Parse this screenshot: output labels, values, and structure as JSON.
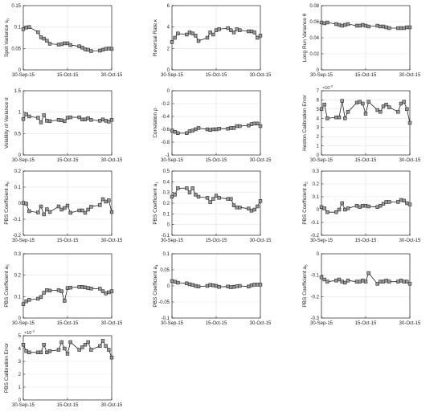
{
  "figure": {
    "date_ticks": [
      "30-Sep-15",
      "15-Oct-15",
      "30-Oct-15"
    ],
    "x_start": "2015-09-30",
    "x_end": "2015-10-30",
    "dates": [
      "2015-09-30",
      "2015-10-01",
      "2015-10-02",
      "2015-10-05",
      "2015-10-06",
      "2015-10-07",
      "2015-10-08",
      "2015-10-09",
      "2015-10-12",
      "2015-10-13",
      "2015-10-14",
      "2015-10-15",
      "2015-10-16",
      "2015-10-19",
      "2015-10-20",
      "2015-10-21",
      "2015-10-22",
      "2015-10-23",
      "2015-10-26",
      "2015-10-27",
      "2015-10-28",
      "2015-10-29",
      "2015-10-30"
    ],
    "colors": {
      "line": "#222222",
      "marker_fill": "#9a9a9a",
      "grid": "#e3e3e3",
      "axis": "#000000",
      "text": "#222222"
    }
  },
  "chart_data": [
    {
      "id": "spot",
      "type": "line",
      "ylabel": "Spot Variance v0",
      "ylabel_main": "Spot Variance v",
      "ylabel_sub": "0",
      "ylim": [
        0,
        0.15
      ],
      "yticks": [
        "0",
        "0.05",
        "0.1",
        "0.15"
      ],
      "exponent": "",
      "values": [
        0.095,
        0.099,
        0.1,
        0.088,
        0.076,
        0.073,
        0.068,
        0.061,
        0.059,
        0.06,
        0.062,
        0.062,
        0.058,
        0.055,
        0.052,
        0.048,
        0.047,
        0.044,
        0.045,
        0.047,
        0.049,
        0.05,
        0.049
      ]
    },
    {
      "id": "kappa",
      "type": "line",
      "ylabel": "Reversal Rate κ",
      "ylabel_main": "Reversal Rate κ",
      "ylabel_sub": "",
      "ylim": [
        0,
        6
      ],
      "yticks": [
        "0",
        "2",
        "4",
        "6"
      ],
      "exponent": "",
      "values": [
        2.6,
        3.0,
        3.4,
        3.3,
        3.5,
        3.4,
        3.2,
        2.7,
        3.0,
        3.5,
        3.3,
        3.7,
        3.8,
        3.9,
        3.7,
        3.5,
        3.8,
        3.7,
        3.6,
        3.6,
        3.5,
        3.0,
        3.2
      ]
    },
    {
      "id": "theta",
      "type": "line",
      "ylabel": "Long Run Variance θ",
      "ylabel_main": "Long Run Variance θ",
      "ylabel_sub": "",
      "ylim": [
        0,
        0.08
      ],
      "yticks": [
        "0",
        "0.02",
        "0.04",
        "0.06",
        "0.08"
      ],
      "exponent": "",
      "values": [
        0.059,
        0.058,
        0.059,
        0.057,
        0.056,
        0.055,
        0.056,
        0.057,
        0.055,
        0.055,
        0.056,
        0.055,
        0.054,
        0.055,
        0.054,
        0.054,
        0.053,
        0.052,
        0.052,
        0.052,
        0.052,
        0.053,
        0.053
      ]
    },
    {
      "id": "sigma",
      "type": "line",
      "ylabel": "Volatility of Variance σ",
      "ylabel_main": "Volatility of Variance σ",
      "ylabel_sub": "",
      "ylim": [
        0,
        1.5
      ],
      "yticks": [
        "0",
        "0.5",
        "1",
        "1.5"
      ],
      "exponent": "",
      "values": [
        0.84,
        0.95,
        0.9,
        0.87,
        0.76,
        0.93,
        0.8,
        0.79,
        0.82,
        0.81,
        0.79,
        0.87,
        0.88,
        0.88,
        0.83,
        0.83,
        0.86,
        0.82,
        0.8,
        0.83,
        0.8,
        0.78,
        0.82
      ]
    },
    {
      "id": "rho",
      "type": "line",
      "ylabel": "Correlation ρ",
      "ylabel_main": "Correlation ρ",
      "ylabel_sub": "",
      "ylim": [
        -1,
        0
      ],
      "yticks": [
        "-1",
        "-0.8",
        "-0.6",
        "-0.4",
        "-0.2",
        "0"
      ],
      "exponent": "",
      "values": [
        -0.62,
        -0.64,
        -0.66,
        -0.66,
        -0.63,
        -0.62,
        -0.6,
        -0.58,
        -0.6,
        -0.61,
        -0.6,
        -0.6,
        -0.59,
        -0.59,
        -0.58,
        -0.58,
        -0.55,
        -0.55,
        -0.54,
        -0.52,
        -0.51,
        -0.51,
        -0.55
      ]
    },
    {
      "id": "heston_err",
      "type": "line",
      "ylabel": "Heston Calibration Error",
      "ylabel_main": "Heston Calibration Error",
      "ylabel_sub": "",
      "ylim": [
        0,
        7
      ],
      "yticks": [
        "0",
        "1",
        "2",
        "3",
        "4",
        "5",
        "6",
        "7"
      ],
      "exponent": "×10⁻³",
      "exp_base": "×10",
      "exp_power": "-3",
      "values": [
        5.0,
        5.5,
        4.0,
        4.1,
        4.1,
        5.9,
        4.0,
        4.7,
        5.7,
        5.8,
        5.6,
        4.5,
        5.8,
        4.9,
        4.7,
        5.3,
        5.5,
        5.2,
        4.7,
        5.6,
        5.8,
        5.0,
        3.5
      ]
    },
    {
      "id": "a0",
      "type": "line",
      "ylabel": "PBS Coefficient a0",
      "ylabel_main": "PBS Coefficient a",
      "ylabel_sub": "0",
      "ylim": [
        -0.2,
        0.2
      ],
      "yticks": [
        "-0.2",
        "-0.1",
        "0",
        "0.1",
        "0.2"
      ],
      "exponent": "",
      "values": [
        0.002,
        -0.003,
        -0.05,
        -0.058,
        -0.02,
        -0.07,
        -0.038,
        -0.055,
        -0.02,
        -0.04,
        -0.03,
        -0.015,
        -0.06,
        -0.045,
        -0.045,
        -0.06,
        -0.04,
        -0.022,
        -0.012,
        0.025,
        0.01,
        0.018,
        -0.055
      ]
    },
    {
      "id": "a1",
      "type": "line",
      "ylabel": "PBS Coefficient a1",
      "ylabel_main": "PBS Coefficient a",
      "ylabel_sub": "1",
      "ylim": [
        -0.1,
        0.5
      ],
      "yticks": [
        "-0.1",
        "0",
        "0.1",
        "0.2",
        "0.3",
        "0.4",
        "0.5"
      ],
      "exponent": "",
      "values": [
        0.26,
        0.28,
        0.34,
        0.34,
        0.3,
        0.34,
        0.28,
        0.26,
        0.25,
        0.21,
        0.24,
        0.27,
        0.25,
        0.24,
        0.24,
        0.18,
        0.16,
        0.16,
        0.15,
        0.13,
        0.14,
        0.17,
        0.22
      ]
    },
    {
      "id": "a2",
      "type": "line",
      "ylabel": "PBS Coefficient a2",
      "ylabel_main": "PBS Coefficient a",
      "ylabel_sub": "2",
      "ylim": [
        -0.2,
        0.3
      ],
      "yticks": [
        "-0.2",
        "-0.1",
        "0",
        "0.1",
        "0.2",
        "0.3"
      ],
      "exponent": "",
      "values": [
        0.02,
        0.01,
        -0.02,
        -0.02,
        0.0,
        0.05,
        0.0,
        0.01,
        0.03,
        0.02,
        0.03,
        0.03,
        0.025,
        0.02,
        0.03,
        0.045,
        0.06,
        0.06,
        0.06,
        0.075,
        0.07,
        0.05,
        0.04
      ]
    },
    {
      "id": "a3",
      "type": "line",
      "ylabel": "PBS Coefficient a3",
      "ylabel_main": "PBS Coefficient a",
      "ylabel_sub": "3",
      "ylim": [
        0,
        0.3
      ],
      "yticks": [
        "0",
        "0.1",
        "0.2",
        "0.3"
      ],
      "exponent": "",
      "values": [
        0.065,
        0.078,
        0.085,
        0.09,
        0.098,
        0.118,
        0.13,
        0.128,
        0.13,
        0.125,
        0.08,
        0.14,
        0.142,
        0.145,
        0.145,
        0.143,
        0.14,
        0.138,
        0.137,
        0.125,
        0.115,
        0.12,
        0.125
      ]
    },
    {
      "id": "a4",
      "type": "line",
      "ylabel": "PBS Coefficient a4",
      "ylabel_main": "PBS Coefficient a",
      "ylabel_sub": "4",
      "ylim": [
        -0.1,
        0.1
      ],
      "yticks": [
        "-0.1",
        "-0.05",
        "0",
        "0.05",
        "0.1"
      ],
      "exponent": "",
      "values": [
        0.015,
        0.013,
        0.01,
        0.008,
        0.005,
        0.003,
        0.0,
        -0.002,
        0.0,
        0.003,
        0.002,
        0.0,
        -0.003,
        -0.002,
        -0.004,
        -0.003,
        -0.001,
        0.0,
        -0.002,
        0.002,
        0.004,
        0.004,
        0.004
      ]
    },
    {
      "id": "a5",
      "type": "line",
      "ylabel": "PBS Coefficient a5",
      "ylabel_main": "PBS Coefficient a",
      "ylabel_sub": "5",
      "ylim": [
        -0.3,
        0
      ],
      "yticks": [
        "-0.3",
        "-0.2",
        "-0.1",
        "0"
      ],
      "exponent": "",
      "values": [
        -0.11,
        -0.12,
        -0.13,
        -0.125,
        -0.12,
        -0.13,
        -0.135,
        -0.125,
        -0.13,
        -0.13,
        -0.125,
        -0.13,
        -0.09,
        -0.14,
        -0.13,
        -0.13,
        -0.125,
        -0.13,
        -0.13,
        -0.125,
        -0.13,
        -0.13,
        -0.14
      ]
    },
    {
      "id": "pbs_err",
      "type": "line",
      "ylabel": "PBS Calibration Error",
      "ylabel_main": "PBS Calibration Error",
      "ylabel_sub": "",
      "ylim": [
        0,
        5
      ],
      "yticks": [
        "0",
        "1",
        "2",
        "3",
        "4",
        "5"
      ],
      "exponent": "×10⁻³",
      "exp_base": "×10",
      "exp_power": "-3",
      "values": [
        4.3,
        3.8,
        3.7,
        3.7,
        3.7,
        4.3,
        3.7,
        3.8,
        3.9,
        4.5,
        4.0,
        3.6,
        4.5,
        3.9,
        4.1,
        4.3,
        4.5,
        3.9,
        4.2,
        4.6,
        4.2,
        3.9,
        3.3
      ]
    }
  ]
}
